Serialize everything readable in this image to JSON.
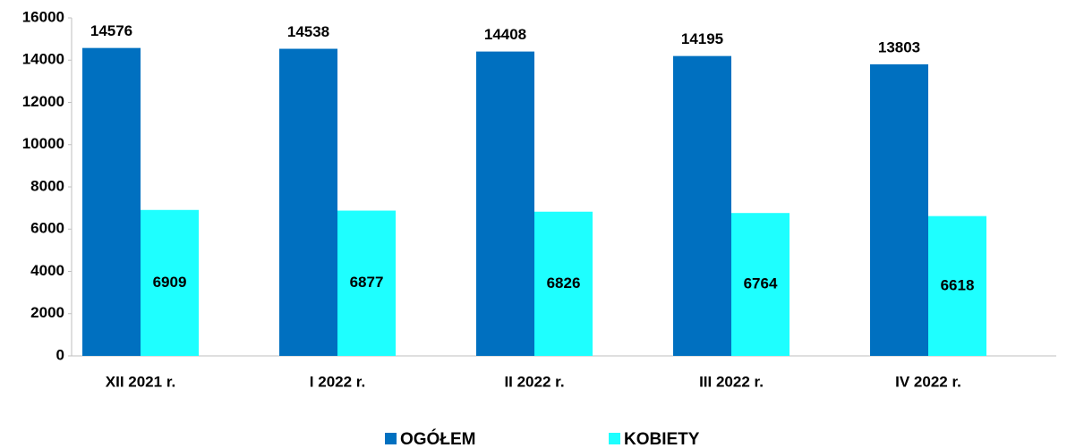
{
  "chart_data": {
    "type": "bar",
    "categories": [
      "XII 2021 r.",
      "I 2022 r.",
      "II 2022 r.",
      "III 2022 r.",
      "IV 2022 r."
    ],
    "series": [
      {
        "name": "OGÓŁEM",
        "color": "#0070c0",
        "values": [
          14576,
          14538,
          14408,
          14195,
          13803
        ]
      },
      {
        "name": "KOBIETY",
        "color": "#1effff",
        "values": [
          6909,
          6877,
          6826,
          6764,
          6618
        ]
      }
    ],
    "ylim": [
      0,
      16000
    ],
    "yticks": [
      0,
      2000,
      4000,
      6000,
      8000,
      10000,
      12000,
      14000,
      16000
    ],
    "grid": false,
    "legend": "bottom"
  }
}
